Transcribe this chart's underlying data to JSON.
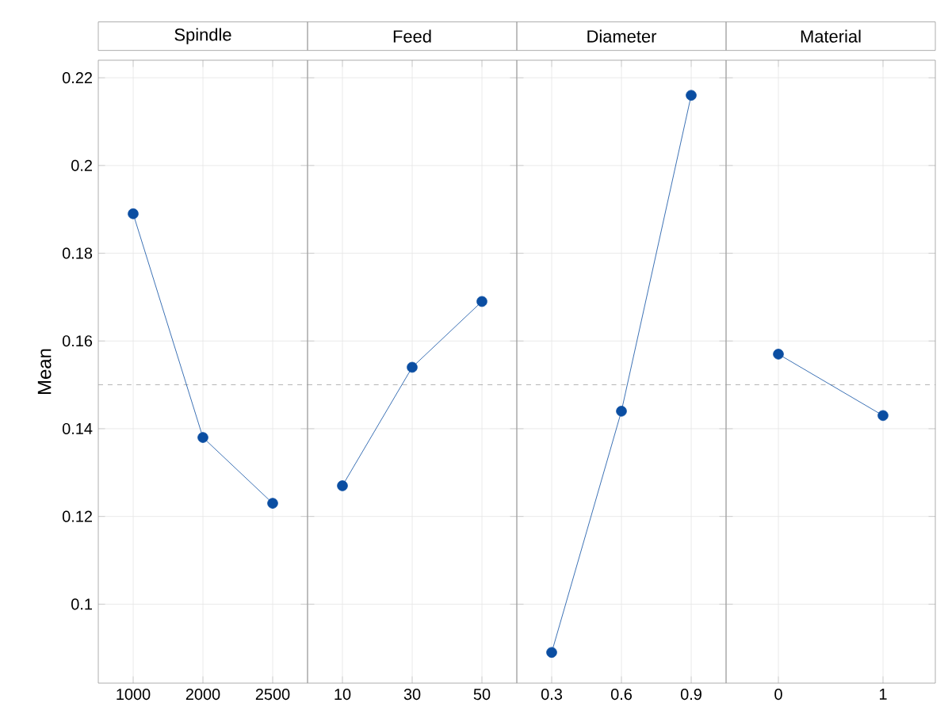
{
  "chart_data": [
    {
      "type": "line",
      "title": "Spindle",
      "ylabel": "Mean",
      "categories": [
        "1000",
        "2000",
        "2500"
      ],
      "values": [
        0.189,
        0.138,
        0.123
      ],
      "color": "#0b4ea2",
      "marker": "circle",
      "ylim": [
        0.082,
        0.224
      ],
      "yticks": [
        0.1,
        0.12,
        0.14,
        0.16,
        0.18,
        0.2,
        0.22
      ],
      "grid": true,
      "ref_lines": [
        {
          "axis": "y",
          "value": 0.15,
          "color": "#999999",
          "line_style": "dashed"
        }
      ]
    },
    {
      "type": "line",
      "title": "Feed",
      "categories": [
        "10",
        "30",
        "50"
      ],
      "values": [
        0.127,
        0.154,
        0.169
      ],
      "color": "#0b4ea2",
      "marker": "circle",
      "ylim": [
        0.082,
        0.224
      ],
      "yticks": [
        0.1,
        0.12,
        0.14,
        0.16,
        0.18,
        0.2,
        0.22
      ],
      "grid": true,
      "tick_labels": "x",
      "ref_lines": [
        {
          "axis": "y",
          "value": 0.15,
          "color": "#999999",
          "line_style": "dashed"
        }
      ]
    },
    {
      "type": "line",
      "title": "Diameter",
      "categories": [
        "0.3",
        "0.6",
        "0.9"
      ],
      "values": [
        0.089,
        0.144,
        0.216
      ],
      "color": "#0b4ea2",
      "marker": "circle",
      "ylim": [
        0.082,
        0.224
      ],
      "yticks": [
        0.1,
        0.12,
        0.14,
        0.16,
        0.18,
        0.2,
        0.22
      ],
      "grid": true,
      "tick_labels": "x",
      "ref_lines": [
        {
          "axis": "y",
          "value": 0.15,
          "color": "#999999",
          "line_style": "dashed"
        }
      ]
    },
    {
      "type": "line",
      "title": "Material",
      "categories": [
        "0",
        "1"
      ],
      "values": [
        0.157,
        0.143
      ],
      "color": "#0b4ea2",
      "marker": "circle",
      "ylim": [
        0.082,
        0.224
      ],
      "yticks": [
        0.1,
        0.12,
        0.14,
        0.16,
        0.18,
        0.2,
        0.22
      ],
      "grid": true,
      "tick_labels": "x",
      "ref_lines": [
        {
          "axis": "y",
          "value": 0.15,
          "color": "#999999",
          "line_style": "dashed"
        }
      ]
    }
  ]
}
